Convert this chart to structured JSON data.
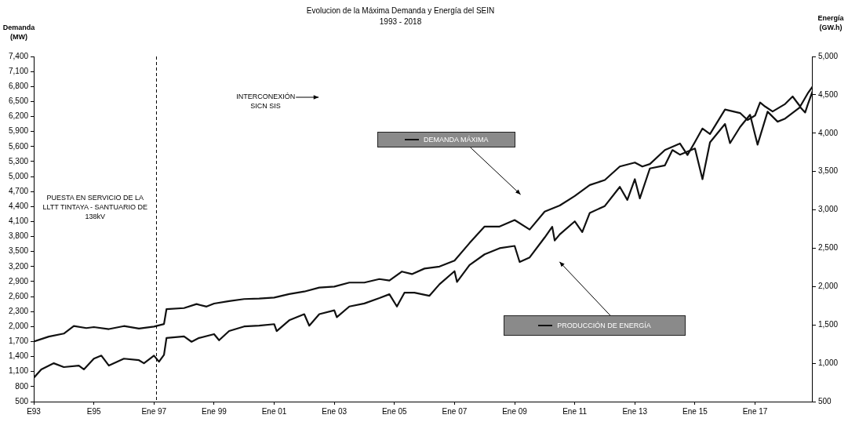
{
  "chart_data": {
    "type": "line",
    "title": "Evolucion de la Máxima Demanda y Energía del SEIN",
    "subtitle": "1993 - 2018",
    "ylabel": "Demanda (MW)",
    "y2label": "Energía (GW.h)",
    "xlim": [
      "1993-01",
      "2018-12"
    ],
    "xticks": [
      {
        "value": "1993-01",
        "label": "E93"
      },
      {
        "value": "1995-01",
        "label": "E95"
      },
      {
        "value": "1997-01",
        "label": "Ene 97"
      },
      {
        "value": "1999-01",
        "label": "Ene 99"
      },
      {
        "value": "2001-01",
        "label": "Ene 01"
      },
      {
        "value": "2003-01",
        "label": "Ene 03"
      },
      {
        "value": "2005-01",
        "label": "Ene 05"
      },
      {
        "value": "2007-01",
        "label": "Ene 07"
      },
      {
        "value": "2009-01",
        "label": "Ene 09"
      },
      {
        "value": "2011-01",
        "label": "Ene 11"
      },
      {
        "value": "2013-01",
        "label": "Ene 13"
      },
      {
        "value": "2015-01",
        "label": "Ene 15"
      },
      {
        "value": "2017-01",
        "label": "Ene 17"
      }
    ],
    "ylim": [
      500,
      7400
    ],
    "yticks": [
      500,
      800,
      {
        "value": 1100,
        "label": "1,100"
      },
      {
        "value": 1400,
        "label": "1,400"
      },
      {
        "value": 1700,
        "label": "1,700"
      },
      {
        "value": 2000,
        "label": "2,000"
      },
      {
        "value": 2300,
        "label": "2,300"
      },
      {
        "value": 2600,
        "label": "2,600"
      },
      {
        "value": 2900,
        "label": "2,900"
      },
      {
        "value": 3200,
        "label": "3,200"
      },
      {
        "value": 3500,
        "label": "3,500"
      },
      {
        "value": 3800,
        "label": "3,800"
      },
      {
        "value": 4100,
        "label": "4,100"
      },
      {
        "value": 4400,
        "label": "4,400"
      },
      {
        "value": 4700,
        "label": "4,700"
      },
      {
        "value": 5000,
        "label": "5,000"
      },
      {
        "value": 5300,
        "label": "5,300"
      },
      {
        "value": 5600,
        "label": "5,600"
      },
      {
        "value": 5900,
        "label": "5,900"
      },
      {
        "value": 6200,
        "label": "6,200"
      },
      {
        "value": 6500,
        "label": "6,500"
      },
      {
        "value": 6800,
        "label": "6,800"
      },
      {
        "value": 7100,
        "label": "7,100"
      },
      {
        "value": 7400,
        "label": "7,400"
      }
    ],
    "y2lim": [
      500,
      5000
    ],
    "y2ticks": [
      500,
      {
        "value": 1000,
        "label": "1,000"
      },
      {
        "value": 1500,
        "label": "1,500"
      },
      {
        "value": 2000,
        "label": "2,000"
      },
      {
        "value": 2500,
        "label": "2,500"
      },
      {
        "value": 3000,
        "label": "3,000"
      },
      {
        "value": 3500,
        "label": "3,500"
      },
      {
        "value": 4000,
        "label": "4,000"
      },
      {
        "value": 4500,
        "label": "4,500"
      },
      {
        "value": 5000,
        "label": "5,000"
      }
    ],
    "grid": false,
    "legend": "center",
    "marker": "none",
    "ref_lines": [
      {
        "axis": "x",
        "value": "1997-02",
        "label": "PUESTA EN SERVICIO DE LA LLTT TINTAYA - SANTUARIO DE 138kV",
        "color": "#000000",
        "line_style": "dashed"
      }
    ],
    "annotations": [
      "INTERCONEXIÓN SICN SIS"
    ],
    "series": [
      {
        "name": "DEMANDA MÁXIMA",
        "color": "#111111",
        "axis": "y",
        "x": [
          "1993-01",
          "1993-07",
          "1994-01",
          "1994-05",
          "1994-10",
          "1995-01",
          "1995-07",
          "1996-01",
          "1996-07",
          "1997-01",
          "1997-05",
          "1997-06",
          "1998-01",
          "1998-06",
          "1998-10",
          "1999-01",
          "1999-07",
          "2000-01",
          "2000-07",
          "2001-01",
          "2001-07",
          "2002-01",
          "2002-07",
          "2003-01",
          "2003-07",
          "2004-01",
          "2004-07",
          "2004-11",
          "2005-04",
          "2005-08",
          "2006-01",
          "2006-07",
          "2007-01",
          "2007-07",
          "2008-01",
          "2008-07",
          "2009-01",
          "2009-07",
          "2010-01",
          "2010-07",
          "2011-01",
          "2011-07",
          "2012-01",
          "2012-07",
          "2013-01",
          "2013-04",
          "2013-07",
          "2014-01",
          "2014-07",
          "2014-10",
          "2015-01",
          "2015-04",
          "2015-07",
          "2016-01",
          "2016-07",
          "2016-10",
          "2017-01",
          "2017-03",
          "2017-05",
          "2017-08",
          "2018-01",
          "2018-04",
          "2018-07",
          "2018-10",
          "2018-12"
        ],
        "values": [
          1700,
          1800,
          1860,
          2010,
          1970,
          1990,
          1950,
          2010,
          1960,
          2000,
          2050,
          2350,
          2370,
          2450,
          2400,
          2460,
          2510,
          2550,
          2560,
          2580,
          2650,
          2700,
          2780,
          2800,
          2880,
          2880,
          2950,
          2920,
          3100,
          3050,
          3160,
          3200,
          3320,
          3670,
          4000,
          4000,
          4130,
          3940,
          4300,
          4420,
          4610,
          4830,
          4930,
          5200,
          5280,
          5200,
          5250,
          5530,
          5660,
          5430,
          5690,
          5960,
          5850,
          6340,
          6270,
          6130,
          6220,
          6480,
          6400,
          6300,
          6450,
          6600,
          6400,
          6660,
          6800
        ]
      },
      {
        "name": "PRODUCCIÓN DE ENERGÍA",
        "color": "#111111",
        "axis": "y2",
        "x": [
          "1993-01",
          "1993-04",
          "1993-09",
          "1994-01",
          "1994-07",
          "1994-09",
          "1995-01",
          "1995-04",
          "1995-07",
          "1996-01",
          "1996-07",
          "1996-09",
          "1997-01",
          "1997-03",
          "1997-05",
          "1997-06",
          "1998-01",
          "1998-04",
          "1998-07",
          "1999-01",
          "1999-03",
          "1999-07",
          "2000-01",
          "2000-07",
          "2001-01",
          "2001-02",
          "2001-07",
          "2002-01",
          "2002-03",
          "2002-07",
          "2003-01",
          "2003-02",
          "2003-07",
          "2004-01",
          "2004-07",
          "2004-11",
          "2005-02",
          "2005-05",
          "2005-09",
          "2006-03",
          "2006-07",
          "2007-01",
          "2007-02",
          "2007-07",
          "2008-01",
          "2008-07",
          "2009-01",
          "2009-03",
          "2009-07",
          "2010-01",
          "2010-04",
          "2010-05",
          "2010-07",
          "2011-01",
          "2011-04",
          "2011-07",
          "2012-01",
          "2012-07",
          "2012-10",
          "2013-01",
          "2013-03",
          "2013-07",
          "2014-01",
          "2014-04",
          "2014-07",
          "2015-01",
          "2015-04",
          "2015-07",
          "2016-01",
          "2016-03",
          "2016-07",
          "2016-11",
          "2017-02",
          "2017-06",
          "2017-10",
          "2018-01",
          "2018-07",
          "2018-09",
          "2018-10",
          "2018-12"
        ],
        "values": [
          810,
          920,
          1000,
          950,
          970,
          920,
          1060,
          1100,
          970,
          1060,
          1040,
          1000,
          1100,
          1020,
          1110,
          1330,
          1350,
          1280,
          1330,
          1380,
          1300,
          1420,
          1480,
          1490,
          1510,
          1420,
          1560,
          1640,
          1490,
          1640,
          1690,
          1600,
          1740,
          1780,
          1850,
          1900,
          1740,
          1920,
          1920,
          1880,
          2030,
          2200,
          2060,
          2280,
          2420,
          2500,
          2530,
          2320,
          2380,
          2640,
          2780,
          2600,
          2680,
          2850,
          2710,
          2960,
          3050,
          3300,
          3130,
          3400,
          3150,
          3540,
          3580,
          3780,
          3720,
          3800,
          3400,
          3880,
          4120,
          3870,
          4080,
          4240,
          3850,
          4280,
          4150,
          4190,
          4340,
          4270,
          4370,
          4550
        ]
      }
    ]
  }
}
